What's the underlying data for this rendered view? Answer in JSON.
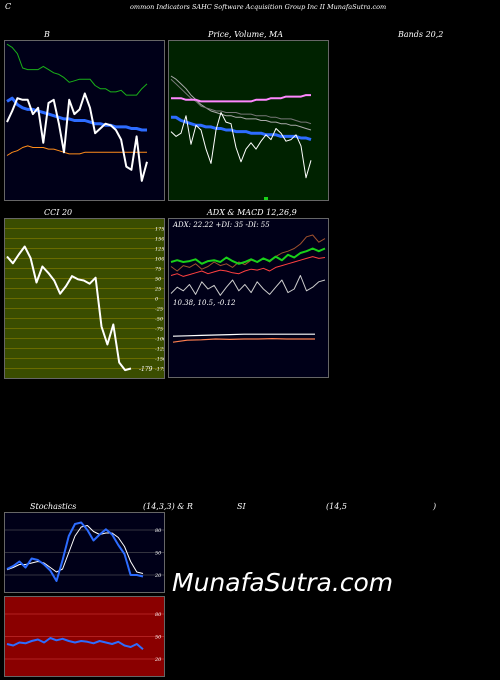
{
  "header": {
    "title": "ommon  Indicators SAHC Software   Acquisition  Group Inc II MunafaSutra.com",
    "c_mark": "C"
  },
  "labels": {
    "bollinger": "B",
    "price_ma": "Price,  Volume, MA",
    "bands": "Bands 20,2",
    "cci": "CCI 20",
    "adx_macd": "ADX  & MACD 12,26,9",
    "stoch_a": "Stochastics",
    "stoch_b": "(14,3,3) & R",
    "stoch_c": "SI",
    "stoch_d": "(14,5",
    "stoch_e": ")"
  },
  "adx": {
    "readout": "ADX: 22.22  +DI: 35 -DI: 55"
  },
  "macd": {
    "readout": "10.38,  10.5,  -0.12"
  },
  "cci": {
    "current": "-179"
  },
  "brand": "MunafaSutra.com",
  "colors": {
    "green_panel": "#002200",
    "cci_panel": "#3a4d00",
    "rsi_panel": "#8a0000",
    "navy_panel": "#000018",
    "blue_line": "#2d6cff",
    "green_line": "#19b019",
    "orange_line": "#ff8c1a"
  },
  "chart_data": [
    {
      "type": "line",
      "panel": "bollinger",
      "series": [
        {
          "values": [
            4.9,
            5.6,
            6.4,
            6.3,
            6.3,
            5.4,
            5.8,
            3.6,
            6.1,
            6.3,
            4.8,
            3.0,
            6.3,
            5.4,
            5.7,
            6.7,
            5.8,
            4.2,
            4.5,
            4.8,
            4.7,
            4.4,
            3.8,
            2.1,
            1.9,
            4.0,
            1.2,
            2.4
          ]
        },
        {
          "values": [
            9.8,
            9.6,
            9.2,
            8.3,
            8.2,
            8.2,
            8.2,
            8.4,
            8.2,
            8.0,
            7.9,
            7.7,
            7.4,
            7.5,
            7.6,
            7.6,
            7.6,
            7.2,
            7.0,
            7.0,
            6.8,
            6.8,
            6.9,
            6.6,
            6.6,
            6.6,
            7.0,
            7.3
          ]
        },
        {
          "values": [
            6.2,
            6.4,
            6.0,
            5.8,
            5.7,
            5.7,
            5.6,
            5.5,
            5.4,
            5.3,
            5.2,
            5.1,
            5.1,
            5.0,
            5.0,
            5.0,
            4.9,
            4.8,
            4.8,
            4.7,
            4.7,
            4.6,
            4.6,
            4.6,
            4.5,
            4.5,
            4.4,
            4.4
          ]
        },
        {
          "values": [
            2.8,
            3.0,
            3.1,
            3.3,
            3.4,
            3.3,
            3.3,
            3.3,
            3.2,
            3.2,
            3.1,
            3.0,
            2.9,
            2.9,
            2.9,
            3.0,
            3.0,
            3.0,
            3.0,
            3.0,
            3.0,
            3.0,
            3.0,
            3.0,
            3.0,
            3.0,
            3.0,
            3.0
          ]
        }
      ]
    },
    {
      "type": "line",
      "panel": "price_volume_ma",
      "series": [
        {
          "values": [
            4.3,
            4.0,
            4.2,
            5.3,
            3.5,
            4.7,
            4.4,
            3.2,
            2.3,
            4.4,
            5.5,
            4.9,
            4.8,
            3.3,
            2.4,
            3.2,
            3.6,
            3.2,
            3.7,
            4.1,
            3.8,
            4.5,
            4.2,
            3.7,
            3.8,
            4.1,
            3.4,
            1.4,
            2.5
          ]
        },
        {
          "values": [
            6.4,
            6.4,
            6.4,
            6.3,
            6.3,
            6.3,
            6.2,
            6.2,
            6.2,
            6.2,
            6.2,
            6.2,
            6.2,
            6.2,
            6.2,
            6.2,
            6.2,
            6.3,
            6.3,
            6.3,
            6.4,
            6.4,
            6.4,
            6.5,
            6.5,
            6.5,
            6.5,
            6.6,
            6.6
          ]
        },
        {
          "values": [
            5.2,
            5.2,
            5.0,
            4.9,
            4.8,
            4.7,
            4.7,
            4.6,
            4.6,
            4.5,
            4.5,
            4.4,
            4.4,
            4.3,
            4.3,
            4.3,
            4.2,
            4.2,
            4.2,
            4.1,
            4.1,
            4.1,
            4.0,
            4.0,
            4.0,
            4.0,
            3.9,
            3.9,
            3.8
          ]
        },
        {
          "values": [
            7.8,
            7.6,
            7.3,
            7.0,
            6.6,
            6.3,
            6.0,
            5.8,
            5.6,
            5.5,
            5.4,
            5.3,
            5.3,
            5.2,
            5.2,
            5.1,
            5.1,
            5.1,
            5.0,
            5.0,
            4.9,
            4.9,
            4.8,
            4.8,
            4.7,
            4.7,
            4.6,
            4.5,
            4.4
          ]
        },
        {
          "values": [
            7.6,
            7.3,
            7.0,
            6.7,
            6.4,
            6.2,
            5.9,
            5.8,
            5.7,
            5.6,
            5.6,
            5.5,
            5.5,
            5.5,
            5.4,
            5.4,
            5.4,
            5.3,
            5.3,
            5.3,
            5.2,
            5.2,
            5.1,
            5.1,
            5.1,
            5.0,
            4.9,
            4.9,
            4.8
          ]
        }
      ]
    },
    {
      "type": "line",
      "panel": "cci",
      "title": "CCI 20",
      "ylim": [
        -175,
        175
      ],
      "ticks": [
        175,
        150,
        125,
        100,
        75,
        50,
        25,
        0,
        -25,
        -50,
        -75,
        -100,
        -125,
        -150,
        -175
      ],
      "values": [
        105,
        88,
        110,
        130,
        101,
        40,
        80,
        64,
        45,
        12,
        31,
        56,
        48,
        45,
        37,
        52,
        -70,
        -115,
        -65,
        -160,
        -179,
        -175
      ]
    },
    {
      "type": "line",
      "panel": "adx",
      "series": [
        {
          "values": [
            40,
            42,
            40,
            41,
            43,
            38,
            41,
            42,
            40,
            45,
            41,
            38,
            40,
            43,
            40,
            44,
            41,
            46,
            42,
            48,
            45,
            50,
            52,
            55,
            52,
            55
          ]
        },
        {
          "values": [
            25,
            27,
            24,
            26,
            28,
            30,
            27,
            29,
            31,
            30,
            28,
            27,
            30,
            32,
            31,
            33,
            30,
            34,
            36,
            38,
            40,
            42,
            44,
            46,
            44,
            45
          ]
        },
        {
          "values": [
            5,
            12,
            8,
            15,
            4,
            18,
            10,
            14,
            3,
            12,
            20,
            8,
            15,
            6,
            18,
            10,
            4,
            12,
            20,
            6,
            10,
            25,
            8,
            12,
            18,
            20
          ]
        },
        {
          "values": [
            35,
            30,
            36,
            34,
            38,
            32,
            35,
            40,
            36,
            38,
            34,
            40,
            37,
            42,
            40,
            44,
            40,
            46,
            50,
            52,
            55,
            60,
            68,
            70,
            62,
            66
          ]
        }
      ]
    },
    {
      "type": "line",
      "panel": "macd",
      "series": [
        {
          "values": [
            10.3,
            10.35,
            10.36,
            10.38,
            10.37,
            10.38,
            10.38,
            10.39,
            10.38,
            10.38,
            10.38
          ]
        },
        {
          "values": [
            10.45,
            10.46,
            10.47,
            10.48,
            10.49,
            10.5,
            10.5,
            10.5,
            10.5,
            10.5,
            10.5
          ]
        }
      ]
    },
    {
      "type": "line",
      "panel": "stochastics",
      "ylim": [
        0,
        100
      ],
      "ticks": [
        80,
        50,
        20
      ],
      "series": [
        {
          "values": [
            28,
            32,
            38,
            30,
            42,
            40,
            34,
            26,
            12,
            40,
            72,
            88,
            90,
            80,
            66,
            74,
            81,
            74,
            60,
            48,
            20,
            20,
            18
          ]
        },
        {
          "values": [
            27,
            30,
            34,
            34,
            36,
            38,
            36,
            30,
            24,
            28,
            50,
            72,
            84,
            86,
            78,
            74,
            76,
            76,
            70,
            58,
            38,
            24,
            22
          ]
        }
      ]
    },
    {
      "type": "line",
      "panel": "rsi",
      "ylim": [
        0,
        100
      ],
      "ticks": [
        80,
        50,
        20
      ],
      "values": [
        40,
        38,
        42,
        41,
        44,
        46,
        42,
        48,
        45,
        47,
        44,
        42,
        44,
        43,
        41,
        44,
        42,
        40,
        43,
        38,
        36,
        40,
        33
      ]
    }
  ]
}
